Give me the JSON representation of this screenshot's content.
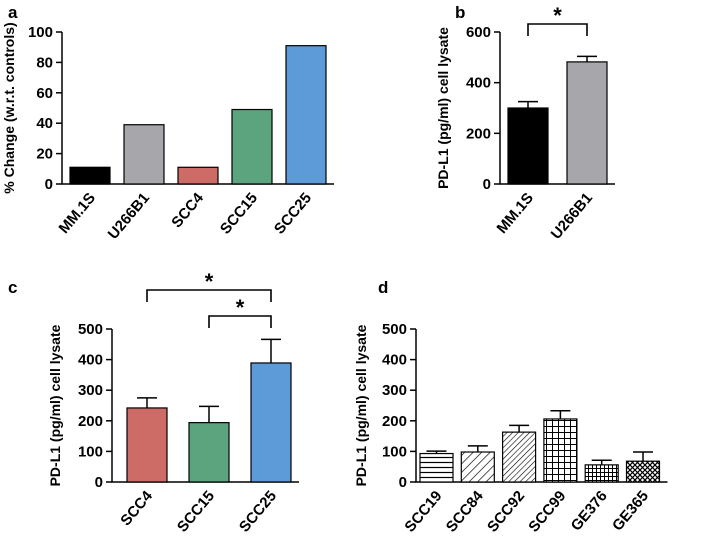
{
  "chart_data": [
    {
      "panel": "a",
      "type": "bar",
      "categories": [
        "MM.1S",
        "U266B1",
        "SCC4",
        "SCC15",
        "SCC25"
      ],
      "values": [
        11,
        39,
        11,
        49,
        91
      ],
      "colors": [
        "#000000",
        "#a6a6ab",
        "#cd6b67",
        "#5ba47d",
        "#5c9ad8"
      ],
      "ylabel": "% Change (w.r.t. controls)",
      "xlabel": "",
      "ylim": [
        0,
        100
      ],
      "yticks": [
        "0",
        "20",
        "40",
        "60",
        "80",
        "100"
      ]
    },
    {
      "panel": "b",
      "type": "bar",
      "categories": [
        "MM.1S",
        "U266B1"
      ],
      "values": [
        300,
        482
      ],
      "errors": [
        25,
        22
      ],
      "colors": [
        "#000000",
        "#a6a6ab"
      ],
      "ylabel": "PD-L1 (pg/ml) cell lysate",
      "xlabel": "",
      "ylim": [
        0,
        600
      ],
      "yticks": [
        "0",
        "200",
        "400",
        "600"
      ],
      "significance": [
        {
          "from": 0,
          "to": 1,
          "label": "*"
        }
      ]
    },
    {
      "panel": "c",
      "type": "bar",
      "categories": [
        "SCC4",
        "SCC15",
        "SCC25"
      ],
      "values": [
        242,
        194,
        389
      ],
      "errors": [
        33,
        53,
        77
      ],
      "colors": [
        "#cd6b67",
        "#5ba47d",
        "#5c9ad8"
      ],
      "ylabel": "PD-L1 (pg/ml) cell lysate",
      "xlabel": "",
      "ylim": [
        0,
        500
      ],
      "yticks": [
        "0",
        "100",
        "200",
        "300",
        "400",
        "500"
      ],
      "significance": [
        {
          "from": 0,
          "to": 2,
          "label": "*"
        },
        {
          "from": 1,
          "to": 2,
          "label": "*"
        }
      ]
    },
    {
      "panel": "d",
      "type": "bar",
      "categories": [
        "SCC19",
        "SCC84",
        "SCC92",
        "SCC99",
        "GE376",
        "GE365"
      ],
      "values": [
        93,
        98,
        163,
        206,
        56,
        68
      ],
      "errors": [
        8,
        20,
        22,
        27,
        15,
        30
      ],
      "patterns": [
        "horizontal-lines",
        "diagonal-lines",
        "dense-diagonal-lines",
        "grid",
        "small-grid",
        "crosshatch"
      ],
      "ylabel": "PD-L1 (pg/ml) cell lysate",
      "xlabel": "",
      "ylim": [
        0,
        500
      ],
      "yticks": [
        "0",
        "100",
        "200",
        "300",
        "400",
        "500"
      ]
    }
  ]
}
